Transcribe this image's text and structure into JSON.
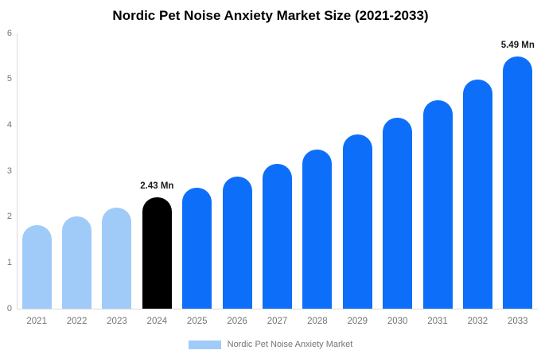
{
  "title": "Nordic Pet Noise Anxiety Market Size (2021-2033)",
  "colors": {
    "background": "#ffffff",
    "axis_line": "#d9d9d9",
    "tick_label": "#757575",
    "annotation_text": "#1a1a1a",
    "past_bar": "#a0cbf9",
    "highlight_bar": "#000000",
    "forecast_bar": "#0d6efa"
  },
  "chart_data": {
    "type": "bar",
    "title": "Nordic Pet Noise Anxiety Market Size (2021-2033)",
    "xlabel": "",
    "ylabel": "",
    "categories": [
      "2021",
      "2022",
      "2023",
      "2024",
      "2025",
      "2026",
      "2027",
      "2028",
      "2029",
      "2030",
      "2031",
      "2032",
      "2033"
    ],
    "values": [
      1.82,
      2.01,
      2.21,
      2.43,
      2.63,
      2.87,
      3.15,
      3.46,
      3.79,
      4.16,
      4.55,
      5.0,
      5.49
    ],
    "unit": "Mn",
    "bar_colors": [
      "#a0cbf9",
      "#a0cbf9",
      "#a0cbf9",
      "#000000",
      "#0d6efa",
      "#0d6efa",
      "#0d6efa",
      "#0d6efa",
      "#0d6efa",
      "#0d6efa",
      "#0d6efa",
      "#0d6efa",
      "#0d6efa"
    ],
    "annotations": [
      {
        "category": "2024",
        "index": 3,
        "text": "2.43 Mn"
      },
      {
        "category": "2033",
        "index": 12,
        "text": "5.49 Mn"
      }
    ],
    "ylim": [
      0,
      6
    ],
    "yticks": [
      0,
      1,
      2,
      3,
      4,
      5,
      6
    ],
    "grid": false,
    "legend": {
      "position": "bottom",
      "items": [
        {
          "label": "Nordic Pet Noise Anxiety Market",
          "color": "#a0cbf9"
        }
      ]
    }
  }
}
